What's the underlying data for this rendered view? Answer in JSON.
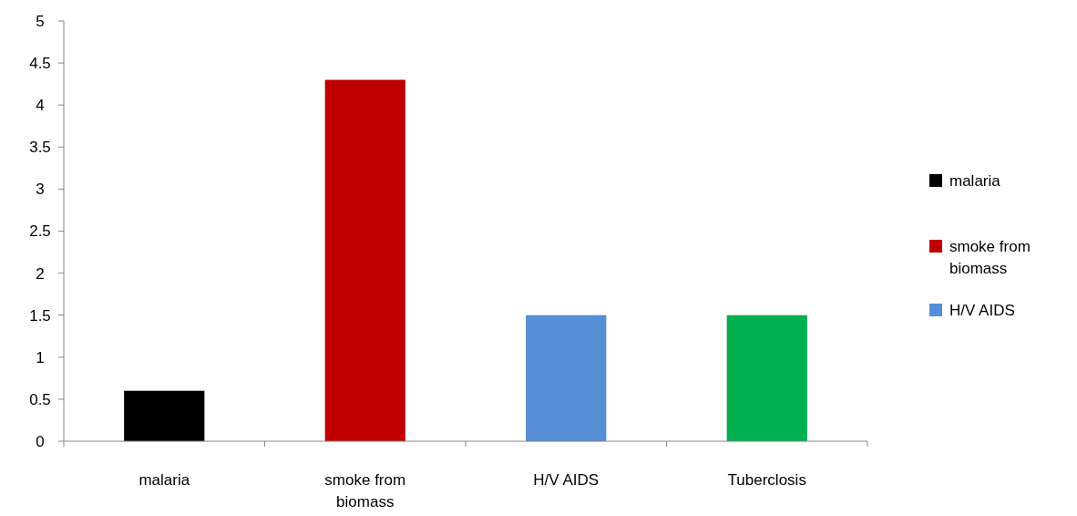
{
  "chart_data": {
    "type": "bar",
    "stacked": true,
    "categories": [
      "malaria",
      "smoke from biomass",
      "H/V AIDS",
      "Tuberclosis"
    ],
    "series": [
      {
        "name": "malaria",
        "color": "#000000",
        "values": [
          0.6,
          null,
          null,
          null
        ]
      },
      {
        "name": "smoke from biomass",
        "color": "#c00000",
        "values": [
          null,
          4.3,
          null,
          null
        ]
      },
      {
        "name": "H/V AIDS",
        "color": "#558ed5",
        "values": [
          null,
          null,
          1.5,
          null
        ]
      },
      {
        "color": "#00b050",
        "values": [
          null,
          null,
          null,
          1.5
        ]
      }
    ],
    "ylim": [
      0,
      5
    ],
    "yticks": [
      0,
      0.5,
      1,
      1.5,
      2,
      2.5,
      3,
      3.5,
      4,
      4.5,
      5
    ],
    "grid": false,
    "legend": "right"
  }
}
